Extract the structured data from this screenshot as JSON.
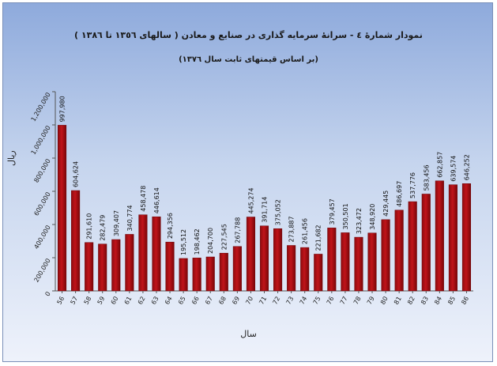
{
  "chart_data": {
    "type": "bar",
    "title": "نمودار شمارهٔ ٤ - سرانهٔ سرمایه گذاری در صنایع و معادن ( سالهای ١٣٥٦ تا ١٣٨٦ )",
    "subtitle": "(بر اساس قیمتهای ثابت سال ١٣٧٦)",
    "xlabel": "سال",
    "ylabel": "ریال",
    "ylim": [
      0,
      1200000
    ],
    "yticks": [
      0,
      200000,
      400000,
      600000,
      800000,
      1000000,
      1200000
    ],
    "ytick_labels": [
      "0",
      "200,000",
      "400,000",
      "600,000",
      "800,000",
      "1,000,000",
      "1,200,000"
    ],
    "categories": [
      "56",
      "57",
      "58",
      "59",
      "60",
      "61",
      "62",
      "63",
      "64",
      "65",
      "66",
      "67",
      "68",
      "69",
      "70",
      "71",
      "72",
      "73",
      "74",
      "75",
      "76",
      "77",
      "78",
      "79",
      "80",
      "81",
      "82",
      "83",
      "84",
      "85",
      "86"
    ],
    "values": [
      997980,
      604624,
      291610,
      282479,
      309407,
      340774,
      458478,
      446614,
      294356,
      195512,
      198462,
      204700,
      227545,
      267788,
      445274,
      391714,
      375052,
      273887,
      261456,
      221682,
      379457,
      350501,
      323472,
      348920,
      429445,
      486697,
      537776,
      583456,
      662857,
      639574,
      646252
    ],
    "value_labels": [
      "997,980",
      "604,624",
      "291,610",
      "282,479",
      "309,407",
      "340,774",
      "458,478",
      "446,614",
      "294,356",
      "195,512",
      "198,462",
      "204,700",
      "227,545",
      "267,788",
      "445,274",
      "391,714",
      "375,052",
      "273,887",
      "261,456",
      "221,682",
      "379,457",
      "350,501",
      "323,472",
      "348,920",
      "429,445",
      "486,697",
      "537,776",
      "583,456",
      "662,857",
      "639,574",
      "646,252"
    ],
    "grid": false,
    "legend": "none",
    "bar_color": "#c0141a"
  }
}
